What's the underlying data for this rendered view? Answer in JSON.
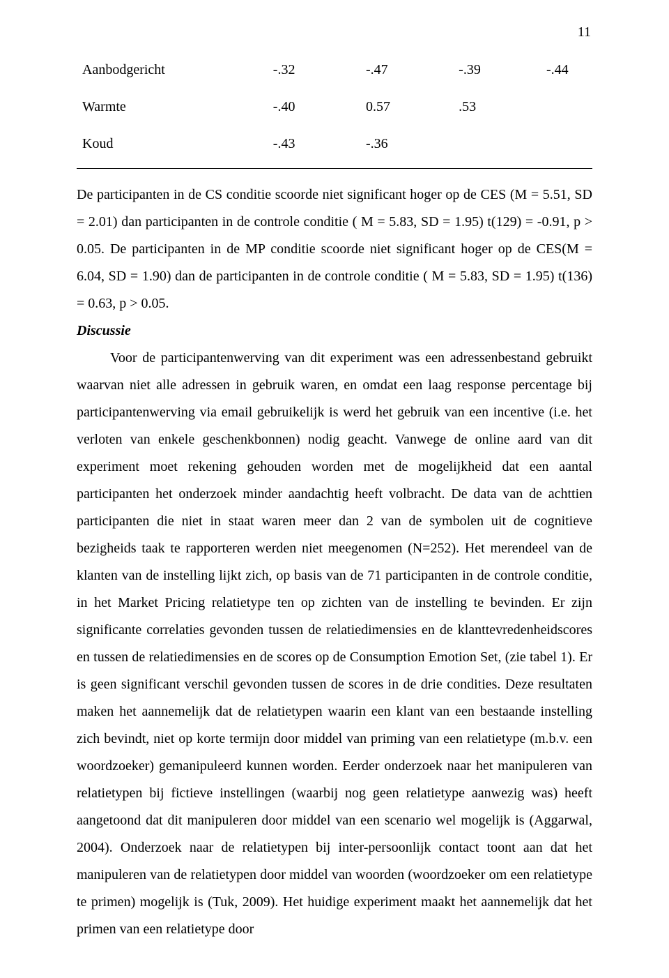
{
  "page_number": "11",
  "table": {
    "rows": [
      {
        "label": "Aanbodgericht",
        "v1": "-.32",
        "v2": "-.47",
        "v3": "-.39",
        "v4": "-.44"
      },
      {
        "label": "Warmte",
        "v1": "-.40",
        "v2": "0.57",
        "v3": ".53",
        "v4": ""
      },
      {
        "label": "Koud",
        "v1": "-.43",
        "v2": "-.36",
        "v3": "",
        "v4": ""
      }
    ]
  },
  "para1a": "De participanten in de CS conditie scoorde niet significant hoger op de CES (M = 5.51, SD = 2.01) dan participanten in de controle conditie ( M = 5.83, SD = 1.95) t(129) = -0.91, p > 0.05. De participanten in de MP conditie scoorde niet significant hoger op de CES(M = 6.04, SD = 1.90) dan de participanten in de controle conditie ( M = 5.83, SD = 1.95) t(136) = 0.63, ",
  "para1b": "p > 0.05.",
  "discussie_heading": "Discussie",
  "para2": "Voor de participantenwerving van dit experiment was een adressenbestand gebruikt waarvan niet alle adressen in gebruik waren, en omdat een laag response percentage bij participantenwerving via email gebruikelijk is werd het gebruik van een incentive (i.e. het verloten van enkele geschenkbonnen) nodig geacht. Vanwege de online aard van dit experiment moet rekening gehouden worden met de mogelijkheid dat een aantal participanten het onderzoek minder aandachtig heeft volbracht. De data van  de achttien participanten die niet in staat waren meer dan 2 van de symbolen uit de cognitieve bezigheids taak te rapporteren werden niet meegenomen (N=252). Het merendeel van de klanten van de instelling lijkt zich, op basis van de 71 participanten in de controle conditie, in het Market Pricing relatietype ten op zichten van de instelling te bevinden. Er zijn significante correlaties gevonden tussen de relatiedimensies en de klanttevredenheidscores en tussen de relatiedimensies en de scores op de Consumption Emotion Set, (zie tabel 1). Er is geen significant verschil gevonden tussen de scores in de drie condities. Deze resultaten maken het aannemelijk dat de relatietypen waarin een klant van een bestaande instelling zich bevindt, niet op korte termijn door middel van priming van een relatietype (m.b.v. een woordzoeker) gemanipuleerd kunnen worden. Eerder onderzoek naar het manipuleren van relatietypen bij fictieve instellingen (waarbij nog geen relatietype aanwezig was) heeft aangetoond dat dit manipuleren door middel van een scenario wel mogelijk is (Aggarwal, 2004). Onderzoek naar de relatietypen bij inter-persoonlijk contact toont aan dat het manipuleren van de relatietypen door middel van woorden (woordzoeker om een relatietype te primen) mogelijk is (Tuk, 2009). Het huidige experiment maakt het aannemelijk dat het primen van een relatietype door"
}
